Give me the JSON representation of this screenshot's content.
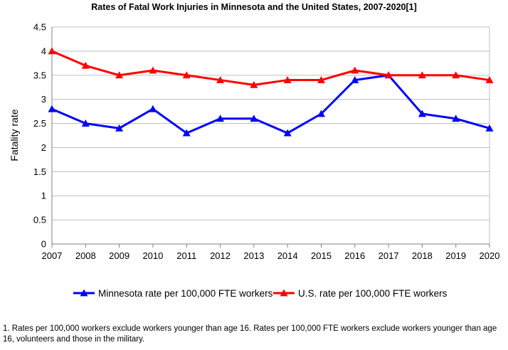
{
  "chart_data": {
    "type": "line",
    "title": "Rates of Fatal Work Injuries in Minnesota and the United States, 2007-2020[1]",
    "xlabel": "",
    "ylabel": "Fatality rate",
    "categories": [
      "2007",
      "2008",
      "2009",
      "2010",
      "2011",
      "2012",
      "2013",
      "2014",
      "2015",
      "2016",
      "2017",
      "2018",
      "2019",
      "2020"
    ],
    "ylim": [
      0,
      4.5
    ],
    "yticks": [
      "0",
      "0.5",
      "1",
      "1.5",
      "2",
      "2.5",
      "3",
      "3.5",
      "4",
      "4.5"
    ],
    "grid": "horizontal",
    "legend_position": "bottom",
    "series": [
      {
        "name": "Minnesota rate per 100,000 FTE workers",
        "color": "#0000ff",
        "values": [
          2.8,
          2.5,
          2.4,
          2.8,
          2.3,
          2.6,
          2.6,
          2.3,
          2.7,
          3.4,
          3.5,
          2.7,
          2.6,
          2.4
        ]
      },
      {
        "name": "U.S. rate per 100,000 FTE workers",
        "color": "#ff0000",
        "values": [
          4.0,
          3.7,
          3.5,
          3.6,
          3.5,
          3.4,
          3.3,
          3.4,
          3.4,
          3.6,
          3.5,
          3.5,
          3.5,
          3.4
        ]
      }
    ]
  },
  "footnote": "1.  Rates per 100,000 workers exclude workers younger than age 16. Rates per 100,000 FTE workers exclude workers younger than age 16, volunteers and those in the military."
}
